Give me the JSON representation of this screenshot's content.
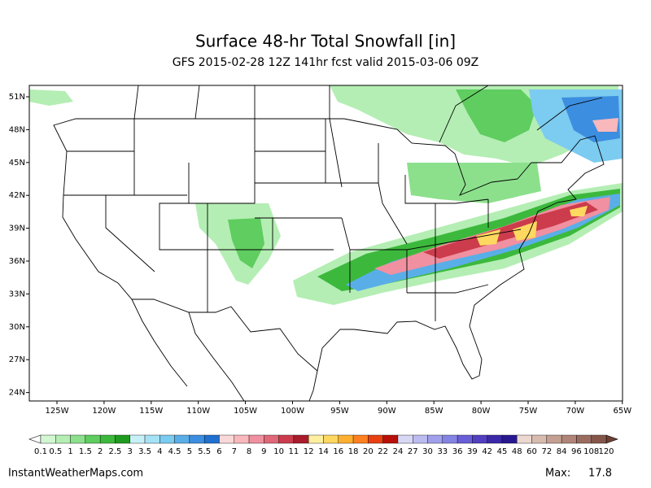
{
  "title": "Surface 48-hr Total Snowfall [in]",
  "subtitle": "GFS 2015-02-28 12Z 141hr fcst valid 2015-03-06 09Z",
  "lat_labels": [
    "51N",
    "48N",
    "45N",
    "42N",
    "39N",
    "36N",
    "33N",
    "30N",
    "27N",
    "24N"
  ],
  "lon_labels": [
    "125W",
    "120W",
    "115W",
    "110W",
    "105W",
    "100W",
    "95W",
    "90W",
    "85W",
    "80W",
    "75W",
    "70W",
    "65W"
  ],
  "colorbar": {
    "labels": [
      "0.1",
      "0.5",
      "1",
      "1.5",
      "2",
      "2.5",
      "3",
      "3.5",
      "4",
      "4.5",
      "5",
      "5.5",
      "6",
      "7",
      "8",
      "9",
      "10",
      "11",
      "12",
      "14",
      "16",
      "18",
      "20",
      "22",
      "24",
      "27",
      "30",
      "33",
      "36",
      "39",
      "42",
      "45",
      "48",
      "60",
      "72",
      "84",
      "96",
      "108",
      "120"
    ],
    "colors": [
      "#d2f7d2",
      "#b4eeb4",
      "#8ce08c",
      "#5fcd5f",
      "#3cb93c",
      "#1f9c1f",
      "#c8f0f8",
      "#a6e2f6",
      "#7ccbf0",
      "#5aaee8",
      "#3c8ee0",
      "#2070d0",
      "#fbd8d8",
      "#f8b8bc",
      "#f090a0",
      "#e06878",
      "#cc3c4c",
      "#a81c2c",
      "#fff0a0",
      "#ffd860",
      "#ffb030",
      "#ff8020",
      "#e84010",
      "#b81008",
      "#d8d8f4",
      "#bcbcf0",
      "#a0a0ec",
      "#8484e4",
      "#6a5ed8",
      "#5040c0",
      "#3a28a8",
      "#281890",
      "#ecd8d0",
      "#d8bcb0",
      "#c4a094",
      "#b08478",
      "#9a6c60",
      "#84564a"
    ],
    "under_color": "#ffffff",
    "over_color": "#6e4034"
  },
  "footer": {
    "source": "InstantWeatherMaps.com",
    "max_label": "Max:",
    "max_value": "17.8"
  }
}
